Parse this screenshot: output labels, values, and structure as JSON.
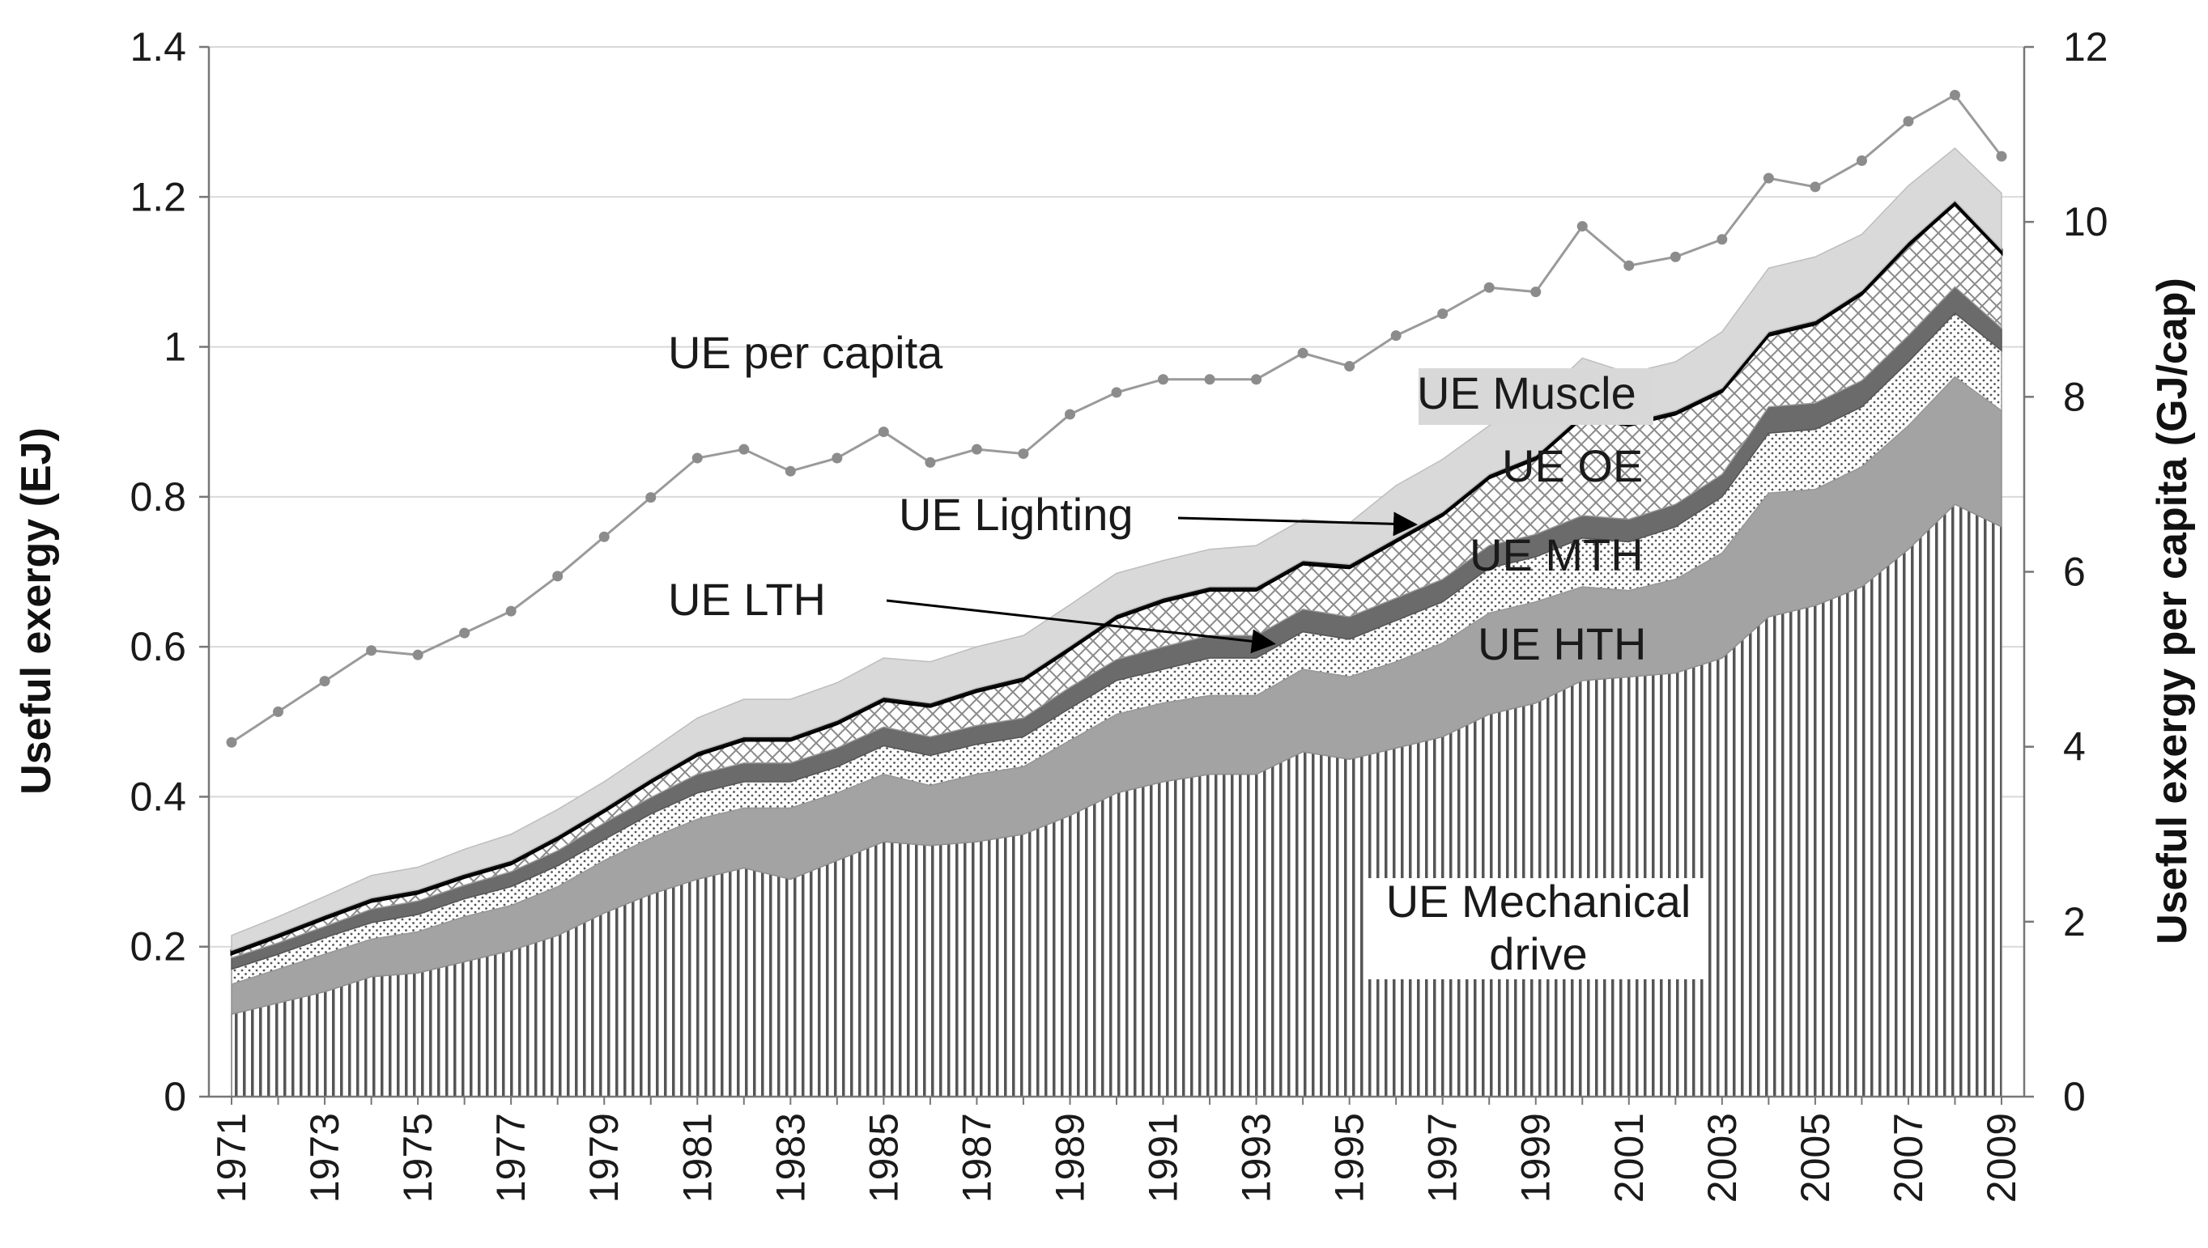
{
  "chart_data": {
    "type": "area",
    "stacked": true,
    "title": "",
    "xlabel": "",
    "ylabel": "Useful exergy (EJ)",
    "ylabel_right": "Useful exergy per capita (GJ/cap)",
    "ylim": [
      0,
      1.4
    ],
    "ylim_right": [
      0,
      12
    ],
    "yticks": [
      "0",
      "0.2",
      "0.4",
      "0.6",
      "0.8",
      "1",
      "1.2",
      "1.4"
    ],
    "yticks_right": [
      "0",
      "2",
      "4",
      "6",
      "8",
      "10",
      "12"
    ],
    "years": [
      1971,
      1972,
      1973,
      1974,
      1975,
      1976,
      1977,
      1978,
      1979,
      1980,
      1981,
      1982,
      1983,
      1984,
      1985,
      1986,
      1987,
      1988,
      1989,
      1990,
      1991,
      1992,
      1993,
      1994,
      1995,
      1996,
      1997,
      1998,
      1999,
      2000,
      2001,
      2002,
      2003,
      2004,
      2005,
      2006,
      2007,
      2008,
      2009
    ],
    "xticks": [
      "1971",
      "1973",
      "1975",
      "1977",
      "1979",
      "1981",
      "1983",
      "1985",
      "1987",
      "1989",
      "1991",
      "1993",
      "1995",
      "1997",
      "1999",
      "2001",
      "2003",
      "2005",
      "2007",
      "2009"
    ],
    "grid": true,
    "series": [
      {
        "name": "UE Mechanical drive",
        "values": [
          0.11,
          0.125,
          0.14,
          0.16,
          0.165,
          0.18,
          0.195,
          0.215,
          0.245,
          0.27,
          0.29,
          0.305,
          0.29,
          0.315,
          0.34,
          0.335,
          0.34,
          0.35,
          0.375,
          0.405,
          0.42,
          0.43,
          0.43,
          0.46,
          0.45,
          0.465,
          0.48,
          0.51,
          0.525,
          0.555,
          0.56,
          0.565,
          0.585,
          0.64,
          0.655,
          0.68,
          0.73,
          0.79,
          0.76
        ]
      },
      {
        "name": "UE HTH",
        "values": [
          0.04,
          0.045,
          0.05,
          0.05,
          0.055,
          0.06,
          0.06,
          0.065,
          0.07,
          0.075,
          0.08,
          0.08,
          0.095,
          0.09,
          0.09,
          0.08,
          0.09,
          0.09,
          0.1,
          0.105,
          0.105,
          0.105,
          0.105,
          0.11,
          0.11,
          0.115,
          0.125,
          0.135,
          0.135,
          0.125,
          0.115,
          0.125,
          0.14,
          0.165,
          0.155,
          0.16,
          0.165,
          0.17,
          0.155
        ]
      },
      {
        "name": "UE MTH",
        "values": [
          0.02,
          0.02,
          0.022,
          0.022,
          0.023,
          0.024,
          0.025,
          0.028,
          0.028,
          0.032,
          0.035,
          0.035,
          0.035,
          0.035,
          0.038,
          0.04,
          0.04,
          0.04,
          0.043,
          0.045,
          0.045,
          0.05,
          0.05,
          0.05,
          0.05,
          0.055,
          0.055,
          0.06,
          0.06,
          0.065,
          0.065,
          0.07,
          0.075,
          0.08,
          0.08,
          0.08,
          0.085,
          0.085,
          0.08
        ]
      },
      {
        "name": "UE LTH",
        "values": [
          0.015,
          0.015,
          0.015,
          0.018,
          0.018,
          0.018,
          0.02,
          0.02,
          0.022,
          0.022,
          0.025,
          0.025,
          0.025,
          0.025,
          0.025,
          0.025,
          0.025,
          0.025,
          0.028,
          0.028,
          0.03,
          0.03,
          0.03,
          0.03,
          0.03,
          0.03,
          0.03,
          0.03,
          0.03,
          0.03,
          0.03,
          0.03,
          0.03,
          0.035,
          0.035,
          0.035,
          0.035,
          0.035,
          0.03
        ]
      },
      {
        "name": "UE OE",
        "values": [
          0.005,
          0.008,
          0.01,
          0.01,
          0.01,
          0.01,
          0.01,
          0.015,
          0.015,
          0.02,
          0.025,
          0.03,
          0.03,
          0.032,
          0.035,
          0.04,
          0.045,
          0.05,
          0.05,
          0.055,
          0.06,
          0.06,
          0.06,
          0.06,
          0.065,
          0.075,
          0.085,
          0.09,
          0.1,
          0.13,
          0.125,
          0.12,
          0.11,
          0.095,
          0.105,
          0.115,
          0.12,
          0.11,
          0.1
        ]
      },
      {
        "name": "UE Lighting",
        "values": [
          0.005,
          0.005,
          0.005,
          0.005,
          0.005,
          0.005,
          0.005,
          0.005,
          0.005,
          0.005,
          0.005,
          0.005,
          0.005,
          0.005,
          0.005,
          0.005,
          0.005,
          0.005,
          0.005,
          0.005,
          0.005,
          0.005,
          0.005,
          0.005,
          0.005,
          0.005,
          0.005,
          0.005,
          0.005,
          0.005,
          0.005,
          0.005,
          0.005,
          0.005,
          0.005,
          0.005,
          0.005,
          0.005,
          0.005
        ]
      },
      {
        "name": "UE Muscle",
        "values": [
          0.02,
          0.022,
          0.025,
          0.03,
          0.03,
          0.033,
          0.035,
          0.035,
          0.035,
          0.038,
          0.045,
          0.05,
          0.05,
          0.05,
          0.052,
          0.055,
          0.055,
          0.055,
          0.055,
          0.055,
          0.05,
          0.05,
          0.055,
          0.055,
          0.055,
          0.07,
          0.07,
          0.065,
          0.07,
          0.075,
          0.065,
          0.065,
          0.075,
          0.085,
          0.085,
          0.075,
          0.075,
          0.07,
          0.075
        ]
      }
    ],
    "per_capita": {
      "name": "UE per capita",
      "values": [
        4.05,
        4.4,
        4.75,
        5.1,
        5.05,
        5.3,
        5.55,
        5.95,
        6.4,
        6.85,
        7.3,
        7.4,
        7.15,
        7.3,
        7.6,
        7.25,
        7.4,
        7.35,
        7.8,
        8.05,
        8.2,
        8.2,
        8.2,
        8.5,
        8.35,
        8.7,
        8.95,
        9.25,
        9.2,
        9.95,
        9.5,
        9.6,
        9.8,
        10.5,
        10.4,
        10.7,
        11.15,
        11.45,
        10.75
      ]
    },
    "annotations": [
      {
        "id": "per-capita",
        "text": "UE per capita"
      },
      {
        "id": "muscle",
        "text": "UE Muscle"
      },
      {
        "id": "oe",
        "text": "UE OE"
      },
      {
        "id": "lighting",
        "text": "UE Lighting"
      },
      {
        "id": "mth",
        "text": "UE MTH"
      },
      {
        "id": "lth",
        "text": "UE LTH"
      },
      {
        "id": "hth",
        "text": "UE HTH"
      },
      {
        "id": "mech-1",
        "text": "UE Mechanical"
      },
      {
        "id": "mech-2",
        "text": "drive"
      }
    ]
  }
}
